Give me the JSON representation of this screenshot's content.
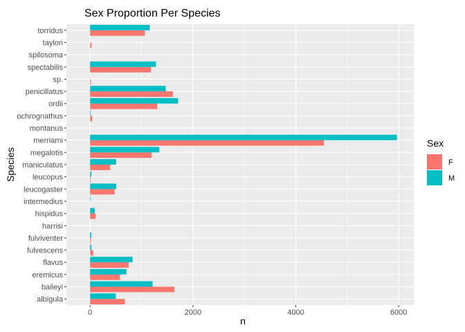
{
  "chart_data": {
    "type": "bar",
    "orientation": "horizontal",
    "title": "Sex Proportion Per Species",
    "xlabel": "n",
    "ylabel": "Species",
    "xlim": [
      0,
      6000
    ],
    "x_ticks": [
      0,
      2000,
      4000,
      6000
    ],
    "grid": true,
    "legend_position": "right",
    "legend_title": "Sex",
    "categories": [
      "albigula",
      "baileyi",
      "eremicus",
      "flavus",
      "fulvescens",
      "fulviventer",
      "harrisi",
      "hispidus",
      "intermedius",
      "leucogaster",
      "leucopus",
      "maniculatus",
      "megalotis",
      "merriami",
      "montanus",
      "ochrognathus",
      "ordii",
      "penicillatus",
      "sp.",
      "spectabilis",
      "spilosoma",
      "taylori",
      "torridus"
    ],
    "series": [
      {
        "name": "F",
        "color": "#F8766D",
        "values": [
          675,
          1640,
          580,
          750,
          60,
          15,
          0,
          110,
          0,
          475,
          10,
          390,
          1195,
          4545,
          0,
          40,
          1305,
          1610,
          15,
          1185,
          0,
          30,
          1065
        ]
      },
      {
        "name": "M",
        "color": "#00BFC4",
        "values": [
          500,
          1215,
          705,
          825,
          25,
          25,
          0,
          90,
          10,
          510,
          25,
          505,
          1345,
          5965,
          0,
          10,
          1710,
          1470,
          0,
          1280,
          0,
          0,
          1160
        ]
      }
    ]
  }
}
